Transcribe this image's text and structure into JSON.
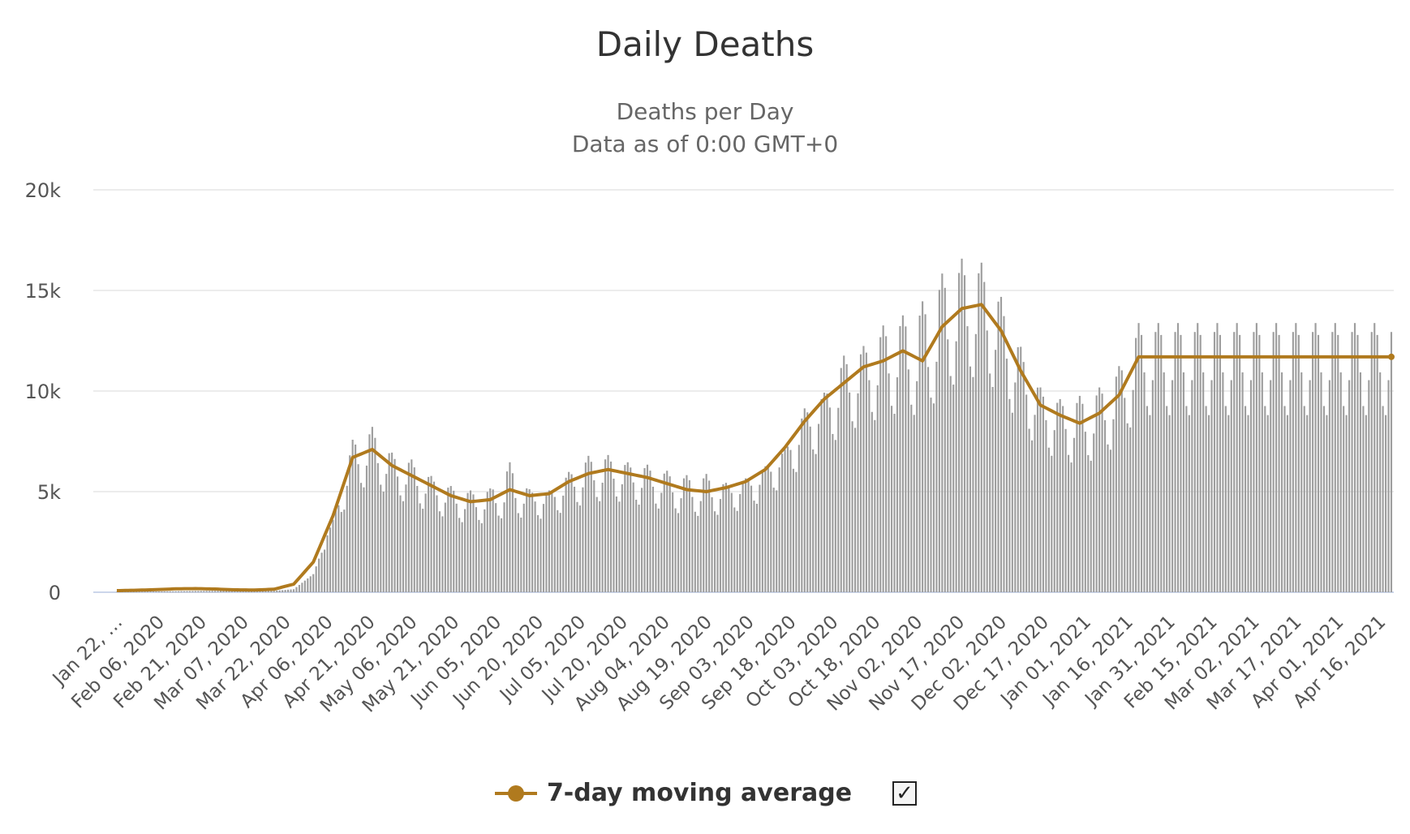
{
  "title": "Daily Deaths",
  "subtitle": [
    "Deaths per Day",
    "Data as of 0:00 GMT+0"
  ],
  "legend": {
    "label": "7-day moving average",
    "checked_glyph": "☑",
    "checkbox_mark": "✓"
  },
  "colors": {
    "bars": "#9e9e9e",
    "line": "#b07a1e",
    "grid": "#e6e6e6",
    "axis": "#ccd6eb"
  },
  "chart_data": {
    "type": "bar",
    "title": "Daily Deaths",
    "ylabel": "",
    "xlabel": "",
    "ylim": [
      0,
      20000
    ],
    "yticks": [
      "0",
      "5k",
      "10k",
      "15k",
      "20k"
    ],
    "ytick_values": [
      0,
      5000,
      10000,
      15000,
      20000
    ],
    "x_start_date": "2020-01-22",
    "x_end_date": "2021-04-20",
    "xticks": [
      "Jan 22, …",
      "Feb 06, 2020",
      "Feb 21, 2020",
      "Mar 07, 2020",
      "Mar 22, 2020",
      "Apr 06, 2020",
      "Apr 21, 2020",
      "May 06, 2020",
      "May 21, 2020",
      "Jun 05, 2020",
      "Jun 20, 2020",
      "Jul 05, 2020",
      "Jul 20, 2020",
      "Aug 04, 2020",
      "Aug 19, 2020",
      "Sep 03, 2020",
      "Sep 18, 2020",
      "Oct 03, 2020",
      "Oct 18, 2020",
      "Nov 02, 2020",
      "Nov 17, 2020",
      "Dec 02, 2020",
      "Dec 17, 2020",
      "Jan 01, 2021",
      "Jan 16, 2021",
      "Jan 31, 2021",
      "Feb 15, 2021",
      "Mar 02, 2021",
      "Mar 17, 2021",
      "Apr 01, 2021",
      "Apr 16, 2021"
    ],
    "series": [
      {
        "name": "",
        "kind": "bar",
        "weekly_max_values": [
          20,
          30,
          40,
          50,
          60,
          70,
          80,
          80,
          70,
          150,
          900,
          3600,
          7800,
          8500,
          7100,
          6800,
          5900,
          5400,
          5200,
          5300,
          6800,
          5200,
          5100,
          6100,
          7000,
          7000,
          6600,
          6500,
          6200,
          6000,
          6100,
          5500,
          5700,
          6300,
          7100,
          9300,
          10000,
          12100,
          12500,
          13700,
          14200,
          15200,
          16500,
          17200,
          16900,
          15100,
          12500,
          10400,
          9800,
          10100,
          10500,
          11600,
          13800
        ]
      },
      {
        "name": "7-day moving average",
        "kind": "line",
        "weekly_values": [
          80,
          100,
          130,
          170,
          180,
          160,
          120,
          110,
          150,
          400,
          1500,
          3800,
          6700,
          7100,
          6300,
          5800,
          5300,
          4800,
          4500,
          4600,
          5100,
          4800,
          4900,
          5500,
          5900,
          6100,
          5900,
          5700,
          5400,
          5100,
          5000,
          5200,
          5500,
          6100,
          7200,
          8500,
          9600,
          10400,
          11200,
          11500,
          12000,
          11500,
          13200,
          14100,
          14300,
          13000,
          11000,
          9300,
          8800,
          8400,
          8900,
          9800,
          11700
        ]
      }
    ]
  }
}
